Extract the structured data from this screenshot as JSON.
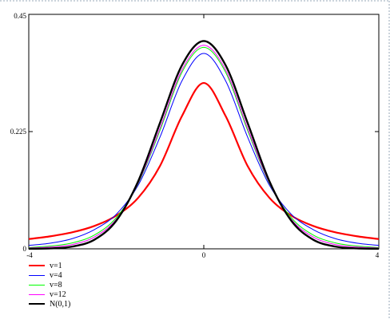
{
  "chart_data": {
    "type": "line",
    "xlim": [
      -4,
      4
    ],
    "ylim": [
      0,
      0.45
    ],
    "x_ticks": [
      "-4",
      "0",
      "4"
    ],
    "y_ticks": [
      "0",
      "0.225",
      "0.45"
    ],
    "x_tick_values": [
      -4,
      0,
      4
    ],
    "y_tick_values": [
      0,
      0.225,
      0.45
    ],
    "grid": false,
    "legend_position": "bottom-left",
    "x": [
      -4,
      -3.5,
      -3,
      -2.5,
      -2,
      -1.5,
      -1,
      -0.5,
      0,
      0.5,
      1,
      1.5,
      2,
      2.5,
      3,
      3.5,
      4
    ],
    "series": [
      {
        "name": "v=1",
        "color": "#ff0000",
        "values": [
          0.0187,
          0.0241,
          0.0318,
          0.0439,
          0.0637,
          0.0979,
          0.1592,
          0.2546,
          0.3183,
          0.2546,
          0.1592,
          0.0979,
          0.0637,
          0.0439,
          0.0318,
          0.0241,
          0.0187
        ]
      },
      {
        "name": "v=4",
        "color": "#0000ff",
        "values": [
          0.0066,
          0.0109,
          0.0197,
          0.0369,
          0.0663,
          0.122,
          0.2147,
          0.3222,
          0.375,
          0.3222,
          0.2147,
          0.122,
          0.0663,
          0.0369,
          0.0197,
          0.0109,
          0.0066
        ]
      },
      {
        "name": "v=8",
        "color": "#00ff00",
        "values": [
          0.0025,
          0.0053,
          0.0115,
          0.0265,
          0.0597,
          0.1251,
          0.2276,
          0.3387,
          0.3867,
          0.3387,
          0.2276,
          0.1251,
          0.0597,
          0.0265,
          0.0115,
          0.0053,
          0.0025
        ]
      },
      {
        "name": "v=12",
        "color": "#ff00ff",
        "values": [
          0.0016,
          0.0035,
          0.0083,
          0.0227,
          0.0567,
          0.126,
          0.2316,
          0.343,
          0.3907,
          0.343,
          0.2316,
          0.126,
          0.0567,
          0.0227,
          0.0083,
          0.0035,
          0.0016
        ]
      },
      {
        "name": "N(0,1)",
        "color": "#000000",
        "values": [
          0.0001,
          0.0009,
          0.0044,
          0.0175,
          0.054,
          0.1295,
          0.242,
          0.3521,
          0.3989,
          0.3521,
          0.242,
          0.1295,
          0.054,
          0.0175,
          0.0044,
          0.0009,
          0.0001
        ]
      }
    ]
  }
}
